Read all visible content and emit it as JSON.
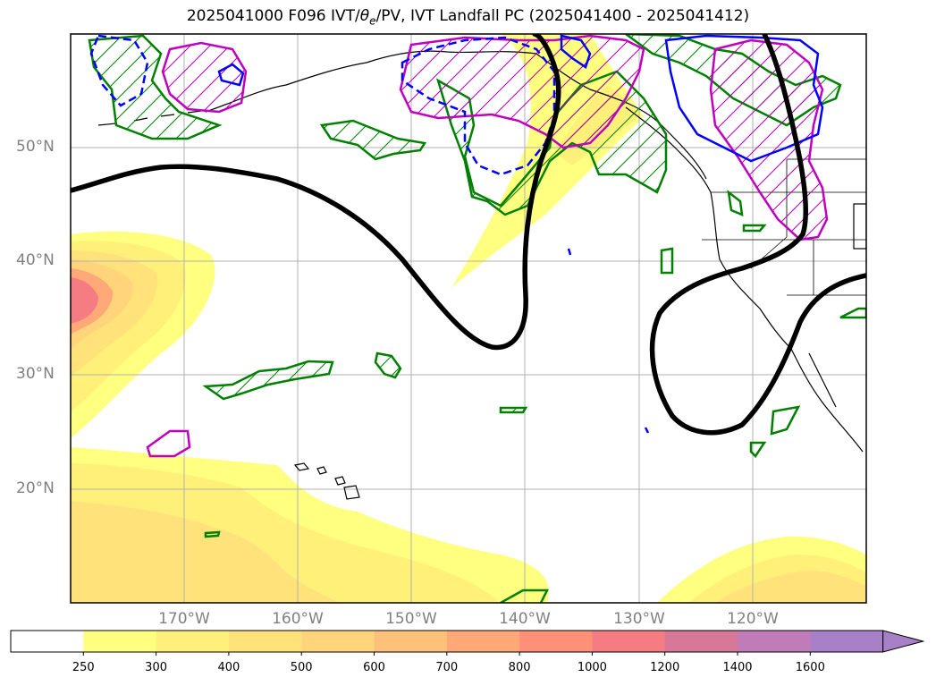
{
  "title": "2025041000 F096 IVT/θe/PV, IVT Landfall PC (2025041400 - 2025041412)",
  "title_parts": {
    "before": "2025041000 F096 IVT/",
    "theta": "θ",
    "sub": "e",
    "after": "/PV, IVT Landfall PC (2025041400 - 2025041412)"
  },
  "map": {
    "extent": {
      "lon_min": -180,
      "lon_max": -110,
      "lat_min": 10,
      "lat_max": 60
    },
    "lat_labels": [
      "50°N",
      "40°N",
      "30°N",
      "20°N"
    ],
    "lon_labels": [
      "170°W",
      "160°W",
      "150°W",
      "140°W",
      "130°W",
      "120°W"
    ],
    "gridlines": true,
    "colors": {
      "landfall_pc_contour": "#000000",
      "green_contour": "#008000",
      "magenta_contour": "#c000c0",
      "blue_contour": "#0000ff",
      "coastline": "#000000"
    }
  },
  "colorbar": {
    "levels": [
      "250",
      "300",
      "400",
      "500",
      "600",
      "700",
      "800",
      "1000",
      "1200",
      "1400",
      "1600"
    ],
    "colors": [
      "#ffffff",
      "#ffff80",
      "#fff07a",
      "#ffe27a",
      "#ffd47a",
      "#ffc07a",
      "#ffa878",
      "#ff9078",
      "#f47c82",
      "#d87898",
      "#c07cb8",
      "#a880c8"
    ],
    "extend": "max"
  }
}
